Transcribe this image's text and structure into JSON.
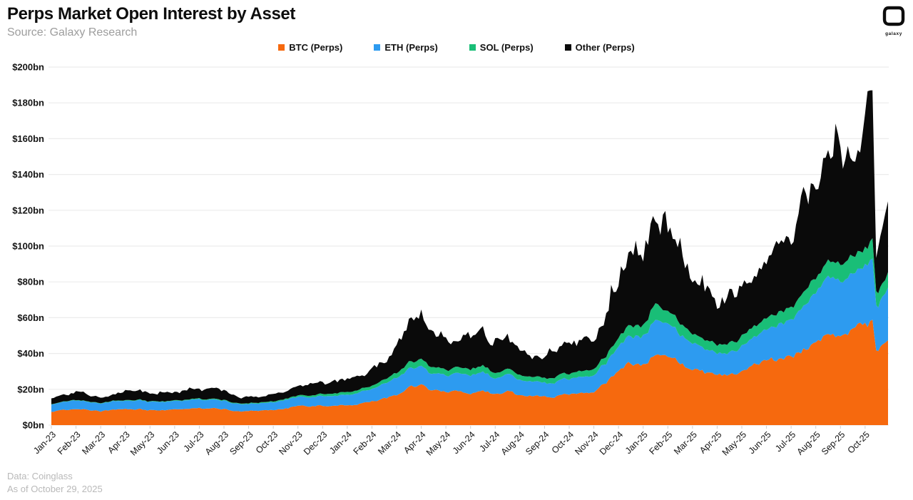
{
  "header": {
    "title": "Perps Market Open Interest by Asset",
    "subtitle": "Source: Galaxy Research",
    "logo_text": "galaxy"
  },
  "legend": [
    {
      "label": "BTC (Perps)",
      "color": "#F6690E"
    },
    {
      "label": "ETH (Perps)",
      "color": "#2D9BF0"
    },
    {
      "label": "SOL (Perps)",
      "color": "#19BE77"
    },
    {
      "label": "Other (Perps)",
      "color": "#0A0A0A"
    }
  ],
  "footer": {
    "line1": "Data: Coinglass",
    "line2": "As of October 29, 2025"
  },
  "chart_data": {
    "type": "area",
    "stacked": true,
    "title": "Perps Market Open Interest by Asset",
    "xlabel": "",
    "ylabel": "",
    "ylim": [
      0,
      200
    ],
    "y_tick_step": 20,
    "y_tick_labels": [
      "$0bn",
      "$20bn",
      "$40bn",
      "$60bn",
      "$80bn",
      "$100bn",
      "$120bn",
      "$140bn",
      "$160bn",
      "$180bn",
      "$200bn"
    ],
    "x_tick_labels": [
      "Jan-23",
      "Feb-23",
      "Mar-23",
      "Apr-23",
      "May-23",
      "Jun-23",
      "Jul-23",
      "Aug-23",
      "Sep-23",
      "Oct-23",
      "Nov-23",
      "Dec-23",
      "Jan-24",
      "Feb-24",
      "Mar-24",
      "Apr-24",
      "May-24",
      "Jun-24",
      "Jul-24",
      "Aug-24",
      "Sep-24",
      "Oct-24",
      "Nov-24",
      "Dec-24",
      "Jan-25",
      "Feb-25",
      "Mar-25",
      "Apr-25",
      "May-25",
      "Jun-25",
      "Jul-25",
      "Aug-25",
      "Sep-25",
      "Oct-25"
    ],
    "grid": "horizontal",
    "legend_position": "top-center",
    "units": "USD billions",
    "x_months": [
      0,
      0.5,
      1,
      1.5,
      2,
      2.5,
      3,
      3.5,
      4,
      4.5,
      5,
      5.5,
      6,
      6.5,
      7,
      7.5,
      8,
      8.5,
      9,
      9.5,
      10,
      10.5,
      11,
      11.5,
      12,
      12.5,
      13,
      13.5,
      14,
      14.5,
      15,
      15.5,
      16,
      16.5,
      17,
      17.5,
      18,
      18.5,
      19,
      19.5,
      20,
      20.5,
      21,
      21.5,
      22,
      22.5,
      23,
      23.5,
      24,
      24.5,
      25,
      25.5,
      26,
      26.5,
      27,
      27.5,
      28,
      28.5,
      29,
      29.5,
      30,
      30.5,
      31,
      31.5,
      32,
      32.5,
      33,
      33.3,
      33.45,
      33.7,
      33.93
    ],
    "x_end": 33.93,
    "roughness": [
      0.04,
      0.05,
      0.07,
      0.16
    ],
    "series": [
      {
        "name": "BTC (Perps)",
        "color": "#F6690E",
        "values": [
          7.5,
          8.2,
          8.8,
          8.5,
          7.8,
          8.6,
          9.2,
          9.0,
          8.4,
          8.6,
          8.5,
          8.8,
          9.3,
          9.2,
          9.0,
          8.0,
          7.8,
          8.0,
          8.6,
          9.5,
          10.4,
          10.8,
          11.0,
          11.4,
          11.2,
          12.0,
          13.0,
          14.5,
          16.5,
          21.0,
          22.0,
          19.0,
          18.0,
          18.5,
          18.0,
          19.5,
          17.0,
          18.5,
          16.5,
          16.0,
          16.0,
          16.5,
          17.5,
          18.0,
          19.0,
          24.0,
          30.0,
          35.0,
          34,
          40,
          37,
          35,
          31,
          29,
          27,
          28,
          31,
          34,
          36,
          37,
          38,
          42,
          47,
          52,
          51,
          53,
          56,
          57,
          42,
          45,
          47
        ]
      },
      {
        "name": "ETH (Perps)",
        "color": "#2D9BF0",
        "values": [
          4.2,
          4.5,
          4.8,
          4.6,
          4.3,
          4.6,
          5.0,
          4.9,
          4.6,
          4.7,
          4.6,
          4.8,
          5.1,
          5.0,
          4.9,
          4.2,
          4.0,
          4.1,
          4.3,
          4.7,
          5.0,
          5.2,
          5.4,
          5.7,
          6.0,
          6.5,
          7.2,
          8.2,
          9.5,
          10.5,
          10.5,
          9.5,
          9.5,
          10.0,
          10.2,
          10.5,
          9.0,
          9.6,
          8.5,
          8.0,
          7.8,
          8.0,
          8.6,
          8.8,
          9.5,
          11.0,
          13.0,
          16.0,
          16.5,
          19.5,
          18.0,
          16.5,
          14.5,
          13.0,
          12.0,
          12.5,
          14.0,
          16.0,
          18.0,
          19.0,
          20.0,
          24.0,
          28.0,
          31.0,
          30.0,
          31.0,
          32.0,
          33,
          24,
          26,
          28
        ]
      },
      {
        "name": "SOL (Perps)",
        "color": "#19BE77",
        "values": [
          0.2,
          0.2,
          0.25,
          0.25,
          0.25,
          0.3,
          0.3,
          0.3,
          0.3,
          0.3,
          0.3,
          0.35,
          0.4,
          0.4,
          0.4,
          0.35,
          0.4,
          0.45,
          0.5,
          0.6,
          0.8,
          1.0,
          1.2,
          1.5,
          1.5,
          1.6,
          1.8,
          2.2,
          2.8,
          3.5,
          3.8,
          3.3,
          3.2,
          3.3,
          3.4,
          3.5,
          3.0,
          3.1,
          2.8,
          2.7,
          2.7,
          2.8,
          3.0,
          3.2,
          3.4,
          4.0,
          5.0,
          6.0,
          6.0,
          8.5,
          7.0,
          6.2,
          5.5,
          5.0,
          4.5,
          5.0,
          5.5,
          5.8,
          6.0,
          6.5,
          7.0,
          7.8,
          8.5,
          8.8,
          9.0,
          9.5,
          10.0,
          10.5,
          7.0,
          8.0,
          8.5
        ]
      },
      {
        "name": "Other (Perps)",
        "color": "#0A0A0A",
        "values": [
          3.0,
          3.6,
          4.0,
          3.8,
          3.4,
          4.2,
          5.2,
          4.8,
          4.2,
          4.4,
          4.3,
          4.6,
          5.4,
          5.6,
          5.5,
          3.8,
          3.6,
          3.7,
          4.0,
          4.6,
          5.0,
          5.3,
          5.6,
          6.2,
          6.8,
          7.5,
          8.5,
          11.0,
          14.0,
          21.0,
          21.0,
          16.0,
          15.0,
          16.5,
          17.0,
          19.0,
          14.0,
          16.0,
          13.0,
          12.5,
          12.5,
          13.5,
          15.0,
          16.0,
          18.0,
          24.0,
          30.0,
          45.0,
          40,
          50,
          44,
          38,
          31,
          27,
          24,
          26,
          30,
          34,
          38,
          36,
          40,
          50,
          57,
          58,
          55,
          58,
          62,
          68,
          15,
          35,
          39
        ]
      }
    ],
    "colors": {
      "grid": "#ECECEC",
      "tick": "#CFCFCF",
      "axis_text": "#141414"
    }
  }
}
